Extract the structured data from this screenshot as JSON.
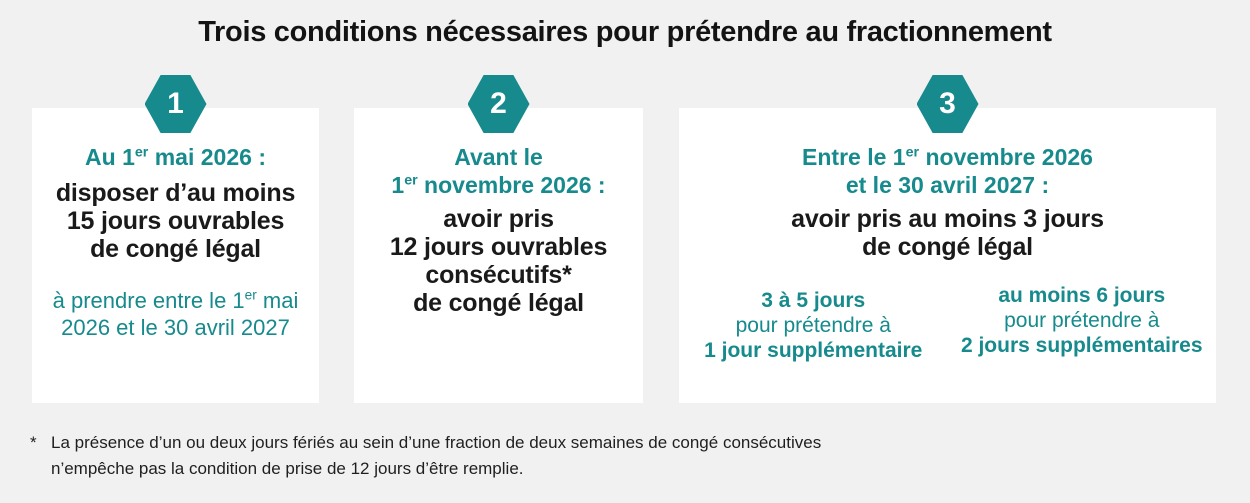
{
  "colors": {
    "teal": "#168a8c",
    "background": "#f1f1f1",
    "card": "#ffffff",
    "text_dark": "#131313"
  },
  "title": "Trois conditions nécessaires pour prétendre au fractionnement",
  "card1": {
    "badge": "1",
    "heading_pre": "Au 1",
    "heading_sup": "er",
    "heading_post": " mai 2026 :",
    "body_line1": "disposer d’au moins",
    "body_line2": "15 jours ouvrables",
    "body_line3": "de congé légal",
    "note_line1_pre": "à prendre entre le 1",
    "note_line1_sup": "er",
    "note_line1_post": " mai",
    "note_line2": "2026 et le 30 avril 2027"
  },
  "card2": {
    "badge": "2",
    "heading_line1": "Avant le",
    "heading_line2_pre": "1",
    "heading_line2_sup": "er",
    "heading_line2_post": " novembre 2026 :",
    "body_line1": "avoir pris",
    "body_line2": "12 jours ouvrables",
    "body_line3": "consécutifs*",
    "body_line4": "de congé légal"
  },
  "card3": {
    "badge": "3",
    "heading_line1_pre": "Entre le 1",
    "heading_line1_sup": "er",
    "heading_line1_post": " novembre 2026",
    "heading_line2": "et le 30 avril 2027 :",
    "body_line1": "avoir pris au moins 3 jours",
    "body_line2": "de congé légal",
    "option_left": {
      "days": "3 à 5 jours",
      "connector": "pour prétendre à",
      "result": "1 jour supplémentaire"
    },
    "option_right": {
      "days": "au moins 6 jours",
      "connector": "pour prétendre à",
      "result": "2 jours supplémentaires"
    }
  },
  "footnote": {
    "marker": "*",
    "line1": "La présence d’un ou deux jours fériés au sein d’une fraction de deux semaines de congé consécutives",
    "line2": "n’empêche pas la condition de prise de 12 jours d’être remplie."
  }
}
